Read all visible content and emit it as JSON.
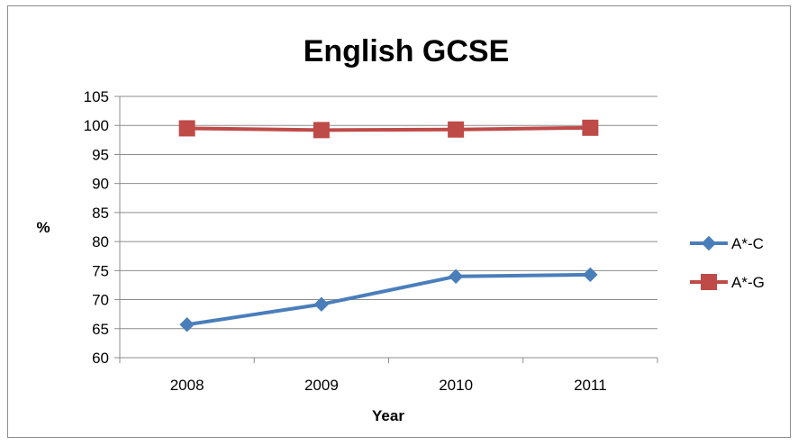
{
  "chart_data": {
    "type": "line",
    "title": "English GCSE",
    "xlabel": "Year",
    "ylabel": "%",
    "categories": [
      "2008",
      "2009",
      "2010",
      "2011"
    ],
    "ylim": [
      60,
      105
    ],
    "yticks": [
      60,
      65,
      70,
      75,
      80,
      85,
      90,
      95,
      100,
      105
    ],
    "grid": "horizontal",
    "legend_position": "right",
    "series": [
      {
        "name": "A*-C",
        "values": [
          65.7,
          69.2,
          74.0,
          74.3
        ],
        "color": "#4a7ebb",
        "marker": "diamond"
      },
      {
        "name": "A*-G",
        "values": [
          99.5,
          99.2,
          99.3,
          99.6
        ],
        "color": "#be4b48",
        "marker": "square"
      }
    ]
  }
}
